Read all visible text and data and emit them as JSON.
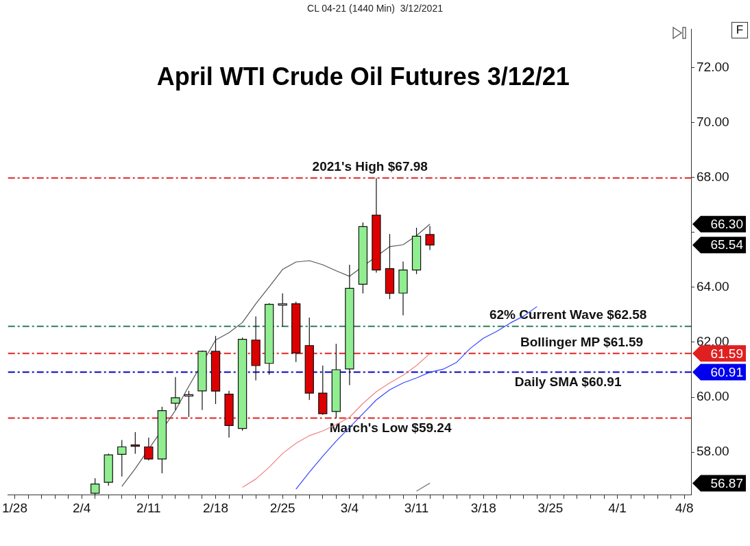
{
  "chart_data": {
    "type": "candlestick",
    "title": "April WTI Crude Oil Futures 3/12/21",
    "subtitle": "CL 04-21 (1440 Min)  3/12/2021",
    "categories": [
      "1/28",
      null,
      null,
      null,
      null,
      "2/4",
      null,
      null,
      null,
      null,
      "2/11",
      null,
      null,
      null,
      null,
      "2/18",
      null,
      null,
      null,
      null,
      "2/25",
      null,
      null,
      null,
      null,
      "3/4",
      null,
      null,
      null,
      null,
      "3/11",
      null,
      null,
      null,
      null,
      "3/18",
      null,
      null,
      null,
      null,
      "3/25",
      null,
      null,
      null,
      null,
      "4/1",
      null,
      null,
      null,
      null,
      "4/8"
    ],
    "ohlc": [
      null,
      null,
      null,
      null,
      null,
      null,
      [
        56.5,
        57.05,
        56.45,
        56.84
      ],
      [
        56.9,
        57.95,
        56.78,
        57.9
      ],
      [
        57.92,
        58.44,
        57.11,
        58.19
      ],
      [
        58.26,
        58.73,
        57.94,
        58.22
      ],
      [
        58.19,
        58.53,
        57.7,
        57.75
      ],
      [
        57.75,
        59.65,
        57.23,
        59.51
      ],
      [
        59.78,
        60.73,
        59.53,
        59.98
      ],
      [
        60.05,
        60.23,
        59.28,
        60.09
      ],
      [
        60.23,
        61.7,
        59.53,
        61.67
      ],
      [
        61.67,
        62.23,
        59.75,
        60.22
      ],
      [
        60.11,
        60.23,
        58.53,
        58.97
      ],
      [
        58.86,
        62.17,
        58.78,
        62.11
      ],
      [
        62.08,
        62.94,
        60.61,
        61.15
      ],
      [
        61.23,
        63.42,
        60.82,
        63.38
      ],
      [
        63.36,
        63.78,
        62.57,
        63.4
      ],
      [
        63.4,
        63.48,
        61.28,
        61.61
      ],
      [
        61.88,
        62.9,
        59.9,
        60.15
      ],
      [
        60.15,
        61.15,
        59.36,
        59.4
      ],
      [
        59.48,
        61.94,
        59.24,
        61.0
      ],
      [
        61.03,
        64.82,
        60.44,
        63.96
      ],
      [
        64.11,
        66.36,
        63.78,
        66.21
      ],
      [
        66.63,
        67.98,
        64.53,
        64.63
      ],
      [
        64.68,
        65.94,
        63.57,
        63.78
      ],
      [
        63.79,
        64.94,
        62.98,
        64.63
      ],
      [
        64.63,
        66.17,
        64.48,
        65.86
      ],
      [
        65.92,
        66.23,
        65.36,
        65.54
      ],
      null,
      null,
      null,
      null,
      null,
      null,
      null,
      null,
      null,
      null,
      null,
      null,
      null,
      null,
      null,
      null,
      null,
      null,
      null
    ],
    "colors": [
      null,
      null,
      null,
      null,
      null,
      null,
      "#90ee90",
      "#90ee90",
      "#90ee90",
      "#dd0000",
      "#dd0000",
      "#90ee90",
      "#90ee90",
      "#ffffff",
      "#90ee90",
      "#dd0000",
      "#dd0000",
      "#90ee90",
      "#dd0000",
      "#90ee90",
      "#ffffff",
      "#dd0000",
      "#dd0000",
      "#dd0000",
      "#90ee90",
      "#90ee90",
      "#90ee90",
      "#dd0000",
      "#dd0000",
      "#90ee90",
      "#90ee90",
      "#dd0000",
      null,
      null,
      null,
      null,
      null,
      null,
      null,
      null,
      null,
      null,
      null,
      null,
      null,
      null,
      null,
      null,
      null,
      null,
      null
    ],
    "series": [
      {
        "type": "line",
        "color": "#555555",
        "values": [
          null,
          null,
          null,
          null,
          null,
          null,
          null,
          null,
          56.75,
          57.4,
          null,
          null,
          59.52,
          60.4,
          null,
          62.08,
          62.35,
          62.72,
          63.4,
          64.02,
          64.65,
          64.92,
          64.97,
          64.82,
          64.6,
          64.4,
          null,
          null,
          65.48,
          65.55,
          65.88,
          66.3,
          null,
          null,
          null,
          null,
          null,
          null,
          null,
          null,
          null,
          null,
          null,
          null,
          null,
          null,
          null,
          null,
          null,
          null,
          null
        ]
      },
      {
        "type": "line",
        "color": "#f08080",
        "values": [
          null,
          null,
          null,
          null,
          null,
          null,
          null,
          null,
          null,
          null,
          null,
          null,
          null,
          null,
          null,
          null,
          null,
          56.72,
          57.02,
          57.45,
          57.95,
          58.32,
          58.6,
          58.77,
          59.0,
          59.27,
          59.77,
          60.2,
          60.52,
          60.8,
          61.15,
          61.59,
          null,
          null,
          null,
          null,
          null,
          null,
          null,
          null,
          null,
          null,
          null,
          null,
          null,
          null,
          null,
          null,
          null,
          null,
          null
        ]
      },
      {
        "type": "line",
        "color": "#3344ff",
        "values": [
          null,
          null,
          null,
          null,
          null,
          null,
          null,
          null,
          null,
          null,
          null,
          null,
          null,
          null,
          null,
          null,
          null,
          null,
          null,
          null,
          null,
          56.65,
          57.27,
          57.85,
          58.4,
          58.9,
          59.4,
          59.9,
          60.27,
          60.52,
          60.7,
          60.91,
          61.02,
          61.27,
          61.77,
          62.15,
          62.4,
          62.7,
          62.95,
          63.3,
          null,
          null,
          null,
          null,
          null,
          null,
          null,
          null,
          null,
          null,
          null
        ]
      },
      {
        "type": "line",
        "color": "#777777",
        "values": [
          null,
          null,
          null,
          null,
          null,
          null,
          null,
          null,
          null,
          null,
          null,
          null,
          null,
          null,
          null,
          null,
          null,
          null,
          null,
          null,
          null,
          null,
          null,
          null,
          null,
          null,
          null,
          null,
          null,
          null,
          56.58,
          56.87,
          null,
          null,
          null,
          null,
          null,
          null,
          null,
          null,
          null,
          null,
          null,
          null,
          null,
          null,
          null,
          null,
          null,
          null,
          null
        ]
      }
    ],
    "ylim": [
      56.45,
      73.4
    ],
    "yticks": [
      {
        "value": 58,
        "label": "58.00"
      },
      {
        "value": 60,
        "label": "60.00"
      },
      {
        "value": 62,
        "label": "62.00"
      },
      {
        "value": 64,
        "label": "64.00"
      },
      {
        "value": 66,
        "label": null
      },
      {
        "value": 68,
        "label": "68.00"
      },
      {
        "value": 70,
        "label": "70.00"
      },
      {
        "value": 72,
        "label": "72.00"
      }
    ],
    "ref_lines": [
      {
        "axis": "y",
        "value": 67.98,
        "label": "2021's High $67.98",
        "color": "#e02020",
        "line_style": "dashed"
      },
      {
        "axis": "y",
        "value": 62.58,
        "label": "62% Current Wave $62.58",
        "color": "#2e7d5a",
        "line_style": "dashed"
      },
      {
        "axis": "y",
        "value": 61.59,
        "label": "Bollinger MP $61.59",
        "color": "#e02020",
        "line_style": "dashed"
      },
      {
        "axis": "y",
        "value": 60.91,
        "label": "Daily SMA $60.91",
        "color": "#0000cc",
        "line_style": "dashed"
      },
      {
        "axis": "y",
        "value": 59.24,
        "label": "March's Low $59.24",
        "color": "#e02020",
        "line_style": "dashed"
      }
    ],
    "y2lim": [
      56.45,
      73.4
    ],
    "y2ticks": [
      {
        "value": 66.3,
        "label": "66.30"
      },
      {
        "value": 65.54,
        "label": "65.54"
      },
      {
        "value": 61.59,
        "label": "61.59"
      },
      {
        "value": 60.91,
        "label": "60.91"
      },
      {
        "value": 56.87,
        "label": "56.87"
      }
    ],
    "annotations": [
      "F"
    ],
    "grid": false,
    "legend": false,
    "marker": "none",
    "line_style": "solid"
  }
}
